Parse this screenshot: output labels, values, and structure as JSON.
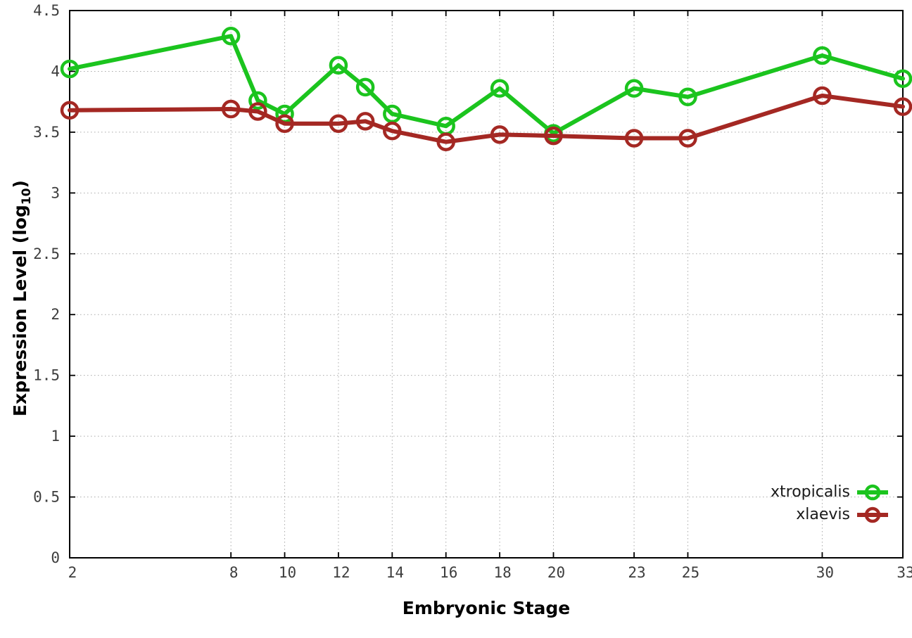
{
  "chart_data": {
    "type": "line",
    "title": "",
    "xlabel": "Embryonic Stage",
    "ylabel": "Expression Level (log10)",
    "ylabel_parts": {
      "main": "Expression Level (log",
      "sub": "10",
      "close": ")"
    },
    "x": [
      2,
      8,
      9,
      10,
      12,
      13,
      14,
      16,
      18,
      20,
      23,
      25,
      30,
      33
    ],
    "series": [
      {
        "name": "xtropicalis",
        "color": "#1bc41e",
        "values": [
          4.02,
          4.29,
          3.76,
          3.65,
          4.05,
          3.87,
          3.65,
          3.55,
          3.86,
          3.49,
          3.86,
          3.79,
          4.13,
          3.94
        ]
      },
      {
        "name": "xlaevis",
        "color": "#a42823",
        "values": [
          3.68,
          3.69,
          3.67,
          3.57,
          3.57,
          3.59,
          3.51,
          3.42,
          3.48,
          3.47,
          3.45,
          3.45,
          3.8,
          3.71
        ]
      }
    ],
    "xlim": [
      2,
      33
    ],
    "ylim": [
      0,
      4.5
    ],
    "xticks": [
      2,
      8,
      10,
      12,
      14,
      16,
      18,
      20,
      23,
      25,
      30,
      33
    ],
    "xtick_labels": [
      "2",
      "8",
      "10",
      "12",
      "14",
      "16",
      "18",
      "20",
      "23",
      "25",
      "30",
      "33"
    ],
    "yticks": [
      0,
      0.5,
      1,
      1.5,
      2,
      2.5,
      3,
      3.5,
      4,
      4.5
    ],
    "ytick_labels": [
      "0",
      "0.5",
      "1",
      "1.5",
      "2",
      "2.5",
      "3",
      "3.5",
      "4",
      "4.5"
    ],
    "grid": true,
    "legend_position": "bottom-right",
    "marker": "open-circle",
    "colors": {
      "axis": "#000000",
      "grid": "#a9a9a9",
      "tick_label": "#3d3d3d",
      "background": "#ffffff"
    }
  }
}
